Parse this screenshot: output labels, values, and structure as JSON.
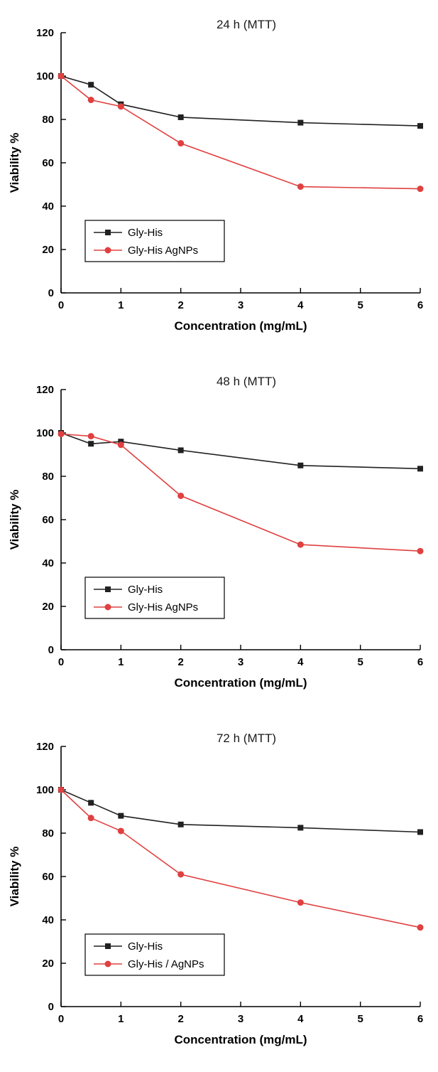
{
  "figure": {
    "name": "MTT cytotoxicity viability plots"
  },
  "colors": {
    "series_black": "#212121",
    "series_red": "#e04040",
    "axis": "#000000",
    "background": "#ffffff"
  },
  "chart_data": [
    {
      "id": "24h",
      "type": "line",
      "title": "24 h (MTT)",
      "xlabel": "Concentration (mg/mL)",
      "ylabel": "Viability %",
      "xlim": [
        0,
        6
      ],
      "ylim": [
        0,
        120
      ],
      "xticks": [
        0,
        1,
        2,
        3,
        4,
        5,
        6
      ],
      "yticks": [
        0,
        20,
        40,
        60,
        80,
        100,
        120
      ],
      "grid": false,
      "legend_position": "lower-left",
      "x": [
        0,
        0.5,
        1,
        2,
        4,
        6
      ],
      "series": [
        {
          "name": "Gly-His",
          "marker": "square",
          "color": "#212121",
          "values": [
            100,
            96,
            87,
            81,
            78.5,
            77
          ]
        },
        {
          "name": "Gly-His AgNPs",
          "marker": "circle",
          "color": "#e04040",
          "values": [
            100,
            89,
            86,
            69,
            49,
            48
          ]
        }
      ]
    },
    {
      "id": "48h",
      "type": "line",
      "title": "48 h (MTT)",
      "xlabel": "Concentration (mg/mL)",
      "ylabel": "Viability %",
      "xlim": [
        0,
        6
      ],
      "ylim": [
        0,
        120
      ],
      "xticks": [
        0,
        1,
        2,
        3,
        4,
        5,
        6
      ],
      "yticks": [
        0,
        20,
        40,
        60,
        80,
        100,
        120
      ],
      "grid": false,
      "legend_position": "lower-left",
      "x": [
        0,
        0.5,
        1,
        2,
        4,
        6
      ],
      "series": [
        {
          "name": "Gly-His",
          "marker": "square",
          "color": "#212121",
          "values": [
            100,
            95,
            96,
            92,
            85,
            83.5
          ]
        },
        {
          "name": "Gly-His AgNPs",
          "marker": "circle",
          "color": "#e04040",
          "values": [
            99.5,
            98.5,
            94.5,
            71,
            48.5,
            45.5
          ]
        }
      ]
    },
    {
      "id": "72h",
      "type": "line",
      "title": "72 h (MTT)",
      "xlabel": "Concentration (mg/mL)",
      "ylabel": "Viability %",
      "xlim": [
        0,
        6
      ],
      "ylim": [
        0,
        120
      ],
      "xticks": [
        0,
        1,
        2,
        3,
        4,
        5,
        6
      ],
      "yticks": [
        0,
        20,
        40,
        60,
        80,
        100,
        120
      ],
      "grid": false,
      "legend_position": "lower-left",
      "x": [
        0,
        0.5,
        1,
        2,
        4,
        6
      ],
      "series": [
        {
          "name": "Gly-His",
          "marker": "square",
          "color": "#212121",
          "values": [
            100,
            94,
            88,
            84,
            82.5,
            80.5
          ]
        },
        {
          "name": "Gly-His / AgNPs",
          "marker": "circle",
          "color": "#e04040",
          "values": [
            100,
            87,
            81,
            61,
            48,
            36.5
          ]
        }
      ]
    }
  ]
}
